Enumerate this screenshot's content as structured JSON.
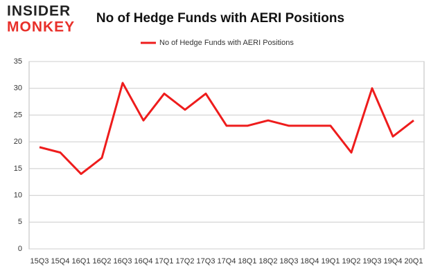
{
  "logo": {
    "line1": "INSIDER",
    "line2": "MONKEY"
  },
  "chart_data": {
    "type": "line",
    "title": "No of Hedge Funds with AERI Positions",
    "categories": [
      "15Q3",
      "15Q4",
      "16Q1",
      "16Q2",
      "16Q3",
      "16Q4",
      "17Q1",
      "17Q2",
      "17Q3",
      "17Q4",
      "18Q1",
      "18Q2",
      "18Q3",
      "18Q4",
      "19Q1",
      "19Q2",
      "19Q3",
      "19Q4",
      "20Q1"
    ],
    "series": [
      {
        "name": "No of Hedge Funds with AERI Positions",
        "color": "#ee1c1c",
        "values": [
          19,
          18,
          14,
          17,
          31,
          24,
          29,
          26,
          29,
          23,
          23,
          24,
          23,
          23,
          23,
          18,
          30,
          21,
          24
        ]
      }
    ],
    "ylim": [
      0,
      35
    ],
    "yticks": [
      0,
      5,
      10,
      15,
      20,
      25,
      30,
      35
    ],
    "grid": true,
    "legend": "top"
  }
}
